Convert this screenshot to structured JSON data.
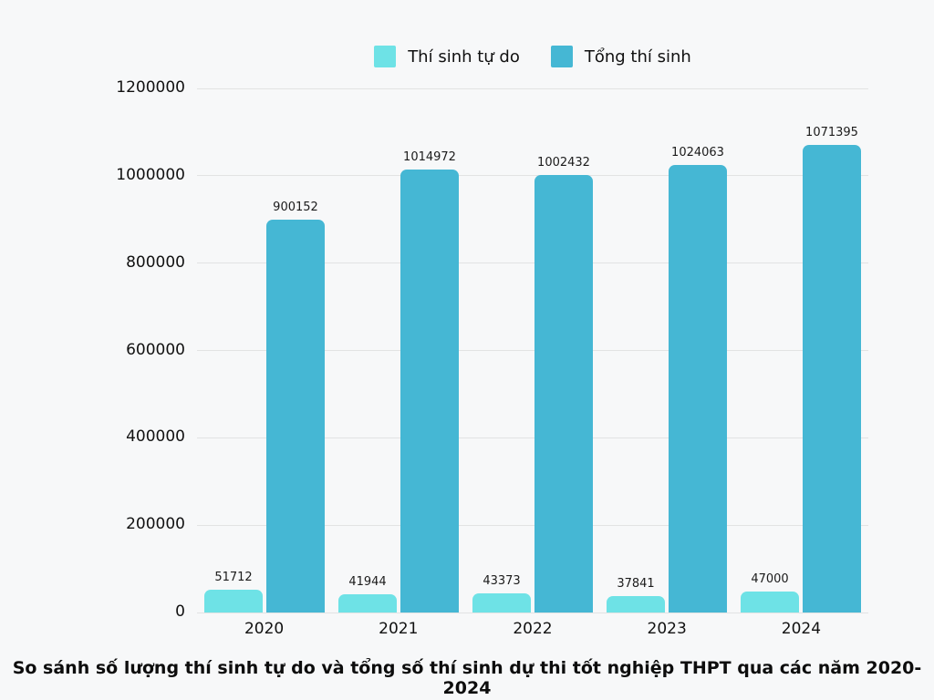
{
  "title": "So sánh số lượng thí sinh tự do và tổng số thí sinh dự thi tốt nghiệp THPT qua các năm 2020-2024",
  "colors": {
    "background": "#f7f8f9",
    "gridline": "#e2e3e3",
    "series_tu_do": "#6ee2e6",
    "series_tong": "#45b7d4",
    "text": "#111111"
  },
  "legend": [
    {
      "label": "Thí sinh tự do",
      "color": "#6ee2e6"
    },
    {
      "label": "Tổng thí sinh",
      "color": "#45b7d4"
    }
  ],
  "chart_data": {
    "type": "bar",
    "categories": [
      "2020",
      "2021",
      "2022",
      "2023",
      "2024"
    ],
    "series": [
      {
        "name": "Thí sinh tự do",
        "color": "#6ee2e6",
        "values": [
          51712,
          41944,
          43373,
          37841,
          47000
        ]
      },
      {
        "name": "Tổng thí sinh",
        "color": "#45b7d4",
        "values": [
          900152,
          1014972,
          1002432,
          1024063,
          1071395
        ]
      }
    ],
    "title": "So sánh số lượng thí sinh tự do và tổng số thí sinh dự thi tốt nghiệp THPT qua các năm 2020-2024",
    "xlabel": "",
    "ylabel": "",
    "ylim": [
      0,
      1200000
    ],
    "yticks": [
      0,
      200000,
      400000,
      600000,
      800000,
      1000000,
      1200000
    ],
    "grid": true,
    "legend_position": "top",
    "value_labels": true
  }
}
